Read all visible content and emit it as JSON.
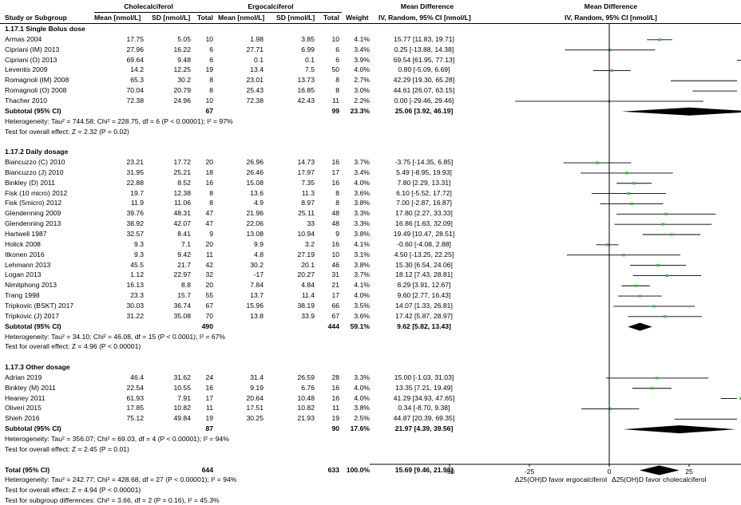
{
  "header": {
    "group1": "Cholecalciferol",
    "group2": "Ergocalciferol",
    "md_title": "Mean Difference",
    "md_title_right": "Mean Difference",
    "col_study": "Study or Subgroup",
    "col_mean1": "Mean [nmol/L]",
    "col_sd1": "SD [nmol/L]",
    "col_total1": "Total",
    "col_mean2": "Mean [nmol/L]",
    "col_sd2": "SD [nmol/L]",
    "col_total2": "Total",
    "col_weight": "Weight",
    "col_ci": "IV, Random, 95% CI [nmol/L]",
    "col_ci_right": "IV, Random, 95% CI [nmol/L]"
  },
  "colors": {
    "ci_marker": "#4caf50",
    "diamond": "#000000"
  },
  "chart_data": {
    "type": "forest",
    "xlim": [
      -75,
      75
    ],
    "ticks": [
      -50,
      -25,
      0,
      25,
      50
    ],
    "tick_labels": [
      "-50",
      "-25",
      "0",
      "25",
      "50"
    ],
    "xlabel_left": "Δ25(OH)D favor ergocalciferol",
    "xlabel_right": "Δ25(OH)D favor cholecalciferol",
    "rows": [
      {
        "kind": "subgroup",
        "label": "1.17.1 Single Bolus dose"
      },
      {
        "kind": "study",
        "label": "Armas 2004",
        "m1": "17.75",
        "sd1": "5.05",
        "n1": "10",
        "m2": "1.98",
        "sd2": "3.85",
        "n2": "10",
        "w": "4.1%",
        "ci": "15.77 [11.83, 19.71]",
        "est": 15.77,
        "lo": 11.83,
        "hi": 19.71
      },
      {
        "kind": "study",
        "label": "Cipriani (IM) 2013",
        "m1": "27.96",
        "sd1": "16.22",
        "n1": "6",
        "m2": "27.71",
        "sd2": "6.99",
        "n2": "6",
        "w": "3.4%",
        "ci": "0.25 [-13.88, 14.38]",
        "est": 0.25,
        "lo": -13.88,
        "hi": 14.38
      },
      {
        "kind": "study",
        "label": "Cipriani (O) 2013",
        "m1": "69.64",
        "sd1": "9.48",
        "n1": "6",
        "m2": "0.1",
        "sd2": "0.1",
        "n2": "6",
        "w": "3.9%",
        "ci": "69.54 [61.95, 77.13]",
        "est": 69.54,
        "lo": 61.95,
        "hi": 77.13
      },
      {
        "kind": "study",
        "label": "Leventis 2009",
        "m1": "14.2",
        "sd1": "12.25",
        "n1": "19",
        "m2": "13.4",
        "sd2": "7.5",
        "n2": "50",
        "w": "4.0%",
        "ci": "0.80 [-5.09, 6.69]",
        "est": 0.8,
        "lo": -5.09,
        "hi": 6.69
      },
      {
        "kind": "study",
        "label": "Romagnoli (IM) 2008",
        "m1": "65.3",
        "sd1": "30.2",
        "n1": "8",
        "m2": "23.01",
        "sd2": "13.73",
        "n2": "8",
        "w": "2.7%",
        "ci": "42.29 [19.30, 65.28]",
        "est": 42.29,
        "lo": 19.3,
        "hi": 65.28
      },
      {
        "kind": "study",
        "label": "Romagnoli (O) 2008",
        "m1": "70.04",
        "sd1": "20.79",
        "n1": "8",
        "m2": "25.43",
        "sd2": "16.85",
        "n2": "8",
        "w": "3.0%",
        "ci": "44.61 [26.07, 63.15]",
        "est": 44.61,
        "lo": 26.07,
        "hi": 63.15
      },
      {
        "kind": "study",
        "label": "Thacher 2010",
        "m1": "72.38",
        "sd1": "24.96",
        "n1": "10",
        "m2": "72.38",
        "sd2": "42.43",
        "n2": "11",
        "w": "2.2%",
        "ci": "0.00 [-29.46, 29.46]",
        "est": 0.0,
        "lo": -29.46,
        "hi": 29.46
      },
      {
        "kind": "subtotal",
        "label": "Subtotal (95% CI)",
        "n1": "67",
        "n2": "99",
        "w": "23.3%",
        "ci": "25.06 [3.92, 46.19]",
        "est": 25.06,
        "lo": 3.92,
        "hi": 46.19
      },
      {
        "kind": "note",
        "label": "Heterogeneity: Tau² = 744.58; Chi² = 228.75, df = 6 (P < 0.00001); I² = 97%"
      },
      {
        "kind": "note",
        "label": "Test for overall effect: Z = 2.32 (P = 0.02)"
      },
      {
        "kind": "blank"
      },
      {
        "kind": "subgroup",
        "label": "1.17.2 Daily dosage"
      },
      {
        "kind": "study",
        "label": "Biancuzzo (C) 2010",
        "m1": "23.21",
        "sd1": "17.72",
        "n1": "20",
        "m2": "26.96",
        "sd2": "14.73",
        "n2": "16",
        "w": "3.7%",
        "ci": "-3.75 [-14.35, 6.85]",
        "est": -3.75,
        "lo": -14.35,
        "hi": 6.85
      },
      {
        "kind": "study",
        "label": "Biancuzzo (J) 2010",
        "m1": "31.95",
        "sd1": "25.21",
        "n1": "18",
        "m2": "26.46",
        "sd2": "17.97",
        "n2": "17",
        "w": "3.4%",
        "ci": "5.49 [-8.95, 19.93]",
        "est": 5.49,
        "lo": -8.95,
        "hi": 19.93
      },
      {
        "kind": "study",
        "label": "Binkley (D) 2011",
        "m1": "22.88",
        "sd1": "8.52",
        "n1": "16",
        "m2": "15.08",
        "sd2": "7.35",
        "n2": "16",
        "w": "4.0%",
        "ci": "7.80 [2.29, 13.31]",
        "est": 7.8,
        "lo": 2.29,
        "hi": 13.31
      },
      {
        "kind": "study",
        "label": "Fisk (10 micro) 2012",
        "m1": "19.7",
        "sd1": "12.38",
        "n1": "8",
        "m2": "13.6",
        "sd2": "11.3",
        "n2": "8",
        "w": "3.6%",
        "ci": "6.10 [-5.52, 17.72]",
        "est": 6.1,
        "lo": -5.52,
        "hi": 17.72
      },
      {
        "kind": "study",
        "label": "Fisk (5micro) 2012",
        "m1": "11.9",
        "sd1": "11.06",
        "n1": "8",
        "m2": "4.9",
        "sd2": "8.97",
        "n2": "8",
        "w": "3.8%",
        "ci": "7.00 [-2.87, 16.87]",
        "est": 7.0,
        "lo": -2.87,
        "hi": 16.87
      },
      {
        "kind": "study",
        "label": "Glendenning 2009",
        "m1": "39.76",
        "sd1": "48.31",
        "n1": "47",
        "m2": "21.96",
        "sd2": "25.11",
        "n2": "48",
        "w": "3.3%",
        "ci": "17.80 [2.27, 33.33]",
        "est": 17.8,
        "lo": 2.27,
        "hi": 33.33
      },
      {
        "kind": "study",
        "label": "Glendenning 2013",
        "m1": "38.92",
        "sd1": "42.07",
        "n1": "47",
        "m2": "22.06",
        "sd2": "33",
        "n2": "48",
        "w": "3.3%",
        "ci": "16.86 [1.63, 32.09]",
        "est": 16.86,
        "lo": 1.63,
        "hi": 32.09
      },
      {
        "kind": "study",
        "label": "Hartwell 1987",
        "m1": "32.57",
        "sd1": "8.41",
        "n1": "9",
        "m2": "13.08",
        "sd2": "10.94",
        "n2": "9",
        "w": "3.8%",
        "ci": "19.49 [10.47, 28.51]",
        "est": 19.49,
        "lo": 10.47,
        "hi": 28.51
      },
      {
        "kind": "study",
        "label": "Holick 2008",
        "m1": "9.3",
        "sd1": "7.1",
        "n1": "20",
        "m2": "9.9",
        "sd2": "3.2",
        "n2": "16",
        "w": "4.1%",
        "ci": "-0.60 [-4.08, 2.88]",
        "est": -0.6,
        "lo": -4.08,
        "hi": 2.88
      },
      {
        "kind": "study",
        "label": "Itkonen 2016",
        "m1": "9.3",
        "sd1": "9.42",
        "n1": "11",
        "m2": "4.8",
        "sd2": "27.19",
        "n2": "10",
        "w": "3.1%",
        "ci": "4.50 [-13.25, 22.25]",
        "est": 4.5,
        "lo": -13.25,
        "hi": 22.25
      },
      {
        "kind": "study",
        "label": "Lehmann 2013",
        "m1": "45.5",
        "sd1": "21.7",
        "n1": "42",
        "m2": "30.2",
        "sd2": "20.1",
        "n2": "46",
        "w": "3.8%",
        "ci": "15.30 [6.54, 24.06]",
        "est": 15.3,
        "lo": 6.54,
        "hi": 24.06
      },
      {
        "kind": "study",
        "label": "Logan 2013",
        "m1": "1.12",
        "sd1": "22.97",
        "n1": "32",
        "m2": "-17",
        "sd2": "20.27",
        "n2": "31",
        "w": "3.7%",
        "ci": "18.12 [7.43, 28.81]",
        "est": 18.12,
        "lo": 7.43,
        "hi": 28.81
      },
      {
        "kind": "study",
        "label": "Nimitphong 2013",
        "m1": "16.13",
        "sd1": "8.8",
        "n1": "20",
        "m2": "7.84",
        "sd2": "4.84",
        "n2": "21",
        "w": "4.1%",
        "ci": "8.29 [3.91, 12.67]",
        "est": 8.29,
        "lo": 3.91,
        "hi": 12.67
      },
      {
        "kind": "study",
        "label": "Trang 1998",
        "m1": "23.3",
        "sd1": "15.7",
        "n1": "55",
        "m2": "13.7",
        "sd2": "11.4",
        "n2": "17",
        "w": "4.0%",
        "ci": "9.60 [2.77, 16.43]",
        "est": 9.6,
        "lo": 2.77,
        "hi": 16.43
      },
      {
        "kind": "study",
        "label": "Tripkovic (BSKT) 2017",
        "m1": "30.03",
        "sd1": "36.74",
        "n1": "67",
        "m2": "15.96",
        "sd2": "38.19",
        "n2": "66",
        "w": "3.5%",
        "ci": "14.07 [1.33, 26.81]",
        "est": 14.07,
        "lo": 1.33,
        "hi": 26.81
      },
      {
        "kind": "study",
        "label": "Tripkovic (J) 2017",
        "m1": "31.22",
        "sd1": "35.08",
        "n1": "70",
        "m2": "13.8",
        "sd2": "33.9",
        "n2": "67",
        "w": "3.6%",
        "ci": "17.42 [5.87, 28.97]",
        "est": 17.42,
        "lo": 5.87,
        "hi": 28.97
      },
      {
        "kind": "subtotal",
        "label": "Subtotal (95% CI)",
        "n1": "490",
        "n2": "444",
        "w": "59.1%",
        "ci": "9.62 [5.82, 13.43]",
        "est": 9.62,
        "lo": 5.82,
        "hi": 13.43
      },
      {
        "kind": "note",
        "label": "Heterogeneity: Tau² = 34.10; Chi² = 46.08, df = 15 (P < 0.0001); I² = 67%"
      },
      {
        "kind": "note",
        "label": "Test for overall effect: Z = 4.96 (P < 0.00001)"
      },
      {
        "kind": "blank"
      },
      {
        "kind": "subgroup",
        "label": "1.17.3 Other dosage"
      },
      {
        "kind": "study",
        "label": "Adrian 2019",
        "m1": "46.4",
        "sd1": "31.62",
        "n1": "24",
        "m2": "31.4",
        "sd2": "26.59",
        "n2": "28",
        "w": "3.3%",
        "ci": "15.00 [-1.03, 31.03]",
        "est": 15.0,
        "lo": -1.03,
        "hi": 31.03
      },
      {
        "kind": "study",
        "label": "Binkley (M) 2011",
        "m1": "22.54",
        "sd1": "10.55",
        "n1": "16",
        "m2": "9.19",
        "sd2": "6.76",
        "n2": "16",
        "w": "4.0%",
        "ci": "13.35 [7.21, 19.49]",
        "est": 13.35,
        "lo": 7.21,
        "hi": 19.49
      },
      {
        "kind": "study",
        "label": "Heaney 2011",
        "m1": "61.93",
        "sd1": "7.91",
        "n1": "17",
        "m2": "20.64",
        "sd2": "10.48",
        "n2": "16",
        "w": "4.0%",
        "ci": "41.29 [34.93, 47.65]",
        "est": 41.29,
        "lo": 34.93,
        "hi": 47.65
      },
      {
        "kind": "study",
        "label": "Oliveri 2015",
        "m1": "17.85",
        "sd1": "10.82",
        "n1": "11",
        "m2": "17.51",
        "sd2": "10.82",
        "n2": "11",
        "w": "3.8%",
        "ci": "0.34 [-8.70, 9.38]",
        "est": 0.34,
        "lo": -8.7,
        "hi": 9.38
      },
      {
        "kind": "study",
        "label": "Shieh 2016",
        "m1": "75.12",
        "sd1": "49.84",
        "n1": "19",
        "m2": "30.25",
        "sd2": "21.93",
        "n2": "19",
        "w": "2.5%",
        "ci": "44.87 [20.39, 69.35]",
        "est": 44.87,
        "lo": 20.39,
        "hi": 69.35
      },
      {
        "kind": "subtotal",
        "label": "Subtotal (95% CI)",
        "n1": "87",
        "n2": "90",
        "w": "17.6%",
        "ci": "21.97 [4.39, 39.56]",
        "est": 21.97,
        "lo": 4.39,
        "hi": 39.56
      },
      {
        "kind": "note",
        "label": "Heterogeneity: Tau² = 356.07; Chi² = 69.03, df = 4 (P < 0.00001); I² = 94%"
      },
      {
        "kind": "note",
        "label": "Test for overall effect: Z = 2.45 (P = 0.01)"
      },
      {
        "kind": "blank"
      },
      {
        "kind": "total",
        "label": "Total (95% CI)",
        "n1": "644",
        "n2": "633",
        "w": "100.0%",
        "ci": "15.69 [9.46, 21.93]",
        "est": 15.69,
        "lo": 9.46,
        "hi": 21.93
      },
      {
        "kind": "note",
        "label": "Heterogeneity: Tau² = 242.77; Chi² = 428.68, df = 27 (P < 0.00001); I² = 94%"
      },
      {
        "kind": "note",
        "label": "Test for overall effect: Z = 4.94 (P < 0.00001)"
      },
      {
        "kind": "note",
        "label": "Test for subgroup differences: Chi² = 3.66, df = 2 (P = 0.16), I² = 45.3%"
      }
    ]
  }
}
